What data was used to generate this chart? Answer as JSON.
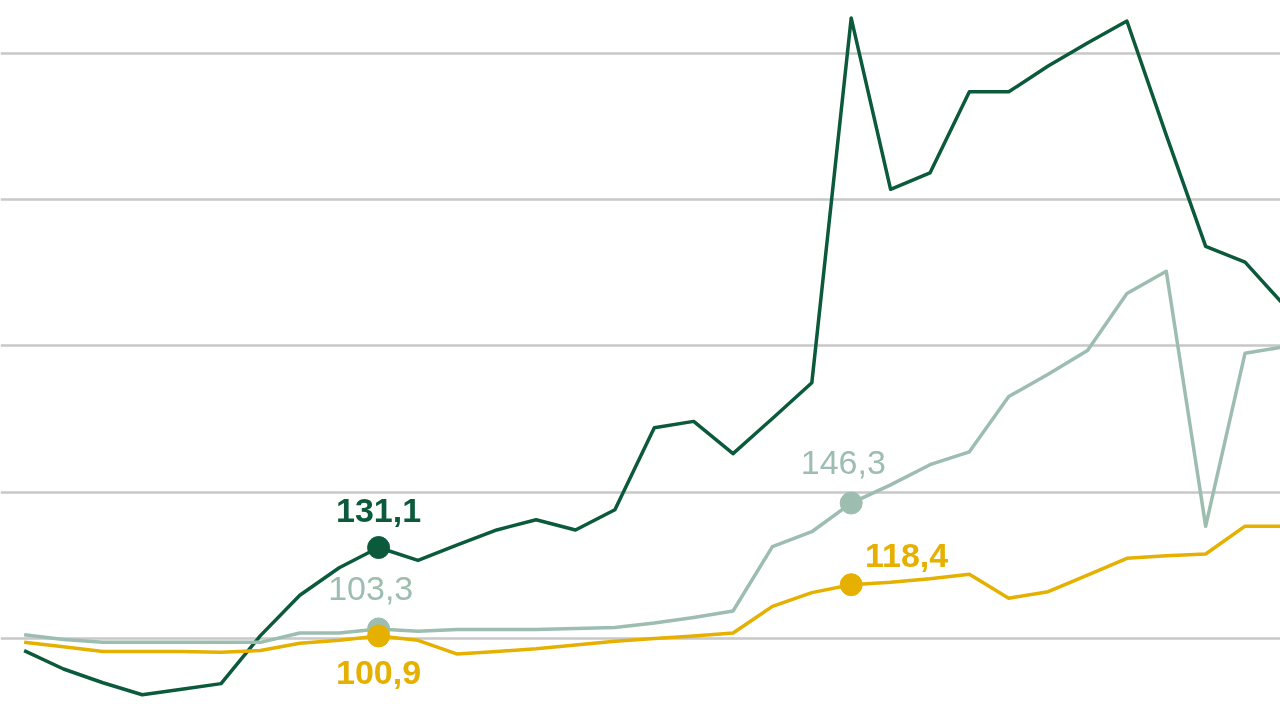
{
  "chart_data": {
    "type": "line",
    "categories": [
      null,
      null,
      null,
      null,
      null,
      null,
      null,
      null,
      null,
      null,
      null,
      null,
      null,
      null,
      null,
      null,
      null,
      null,
      null,
      null,
      null,
      null,
      null,
      null,
      null,
      null,
      null,
      null,
      null,
      null,
      null,
      null,
      null
    ],
    "series": [
      {
        "color": "#0b5a3c",
        "values": [
          95.9,
          89.6,
          84.9,
          80.8,
          82.7,
          84.6,
          101,
          114.8,
          124.2,
          131.1,
          126.7,
          132,
          137.1,
          140.6,
          137.1,
          144,
          172,
          174.2,
          163.2,
          175.2,
          187.4,
          312,
          253.5,
          259.1,
          286.8,
          286.8,
          295.6,
          303.5,
          311,
          272,
          234,
          228.6,
          213.8
        ],
        "value_labels": [
          null,
          null,
          null,
          null,
          null,
          null,
          null,
          null,
          null,
          "131,1",
          null,
          null,
          null,
          null,
          null,
          null,
          null,
          null,
          null,
          null,
          null,
          null,
          null,
          null,
          null,
          null,
          null,
          null,
          null,
          null,
          null,
          null,
          null
        ]
      },
      {
        "color": "#9dbdb0",
        "values": [
          101.3,
          99.7,
          98.7,
          98.7,
          98.7,
          98.7,
          98.7,
          101.9,
          101.9,
          103.3,
          102.5,
          103.1,
          103.1,
          103.1,
          103.4,
          103.8,
          105.3,
          107.2,
          109.4,
          131.4,
          136.5,
          146.3,
          152.5,
          159.4,
          163.8,
          182.7,
          190.3,
          198.4,
          217.9,
          225.5,
          138.4,
          197.5,
          199.7
        ],
        "value_labels": [
          null,
          null,
          null,
          null,
          null,
          null,
          null,
          null,
          null,
          "103,3",
          null,
          null,
          null,
          null,
          null,
          null,
          null,
          null,
          null,
          null,
          null,
          "146,3",
          null,
          null,
          null,
          null,
          null,
          null,
          null,
          null,
          null,
          null,
          null
        ]
      },
      {
        "color": "#e5b000",
        "values": [
          98.7,
          97.2,
          95.6,
          95.6,
          95.6,
          95.3,
          95.9,
          98.4,
          99.4,
          100.9,
          99.4,
          94.7,
          95.6,
          96.5,
          97.8,
          99.1,
          100,
          100.9,
          101.9,
          111,
          115.7,
          118.4,
          119.2,
          120.4,
          122,
          113.8,
          116,
          121.7,
          127.4,
          128.3,
          128.9,
          138.4,
          138.4
        ],
        "value_labels": [
          null,
          null,
          null,
          null,
          null,
          null,
          null,
          null,
          null,
          "100,9",
          null,
          null,
          null,
          null,
          null,
          null,
          null,
          null,
          null,
          null,
          null,
          "118,4",
          null,
          null,
          null,
          null,
          null,
          null,
          null,
          null,
          null,
          null,
          null
        ]
      }
    ],
    "ylim": [
      72,
      318
    ],
    "yticks": [
      {
        "value": 100,
        "label": null
      },
      {
        "value": 150,
        "label": null
      },
      {
        "value": 200,
        "label": null
      },
      {
        "value": 250,
        "label": null
      },
      {
        "value": 300,
        "label": null
      }
    ],
    "grid": "y",
    "tick_labels": false
  }
}
